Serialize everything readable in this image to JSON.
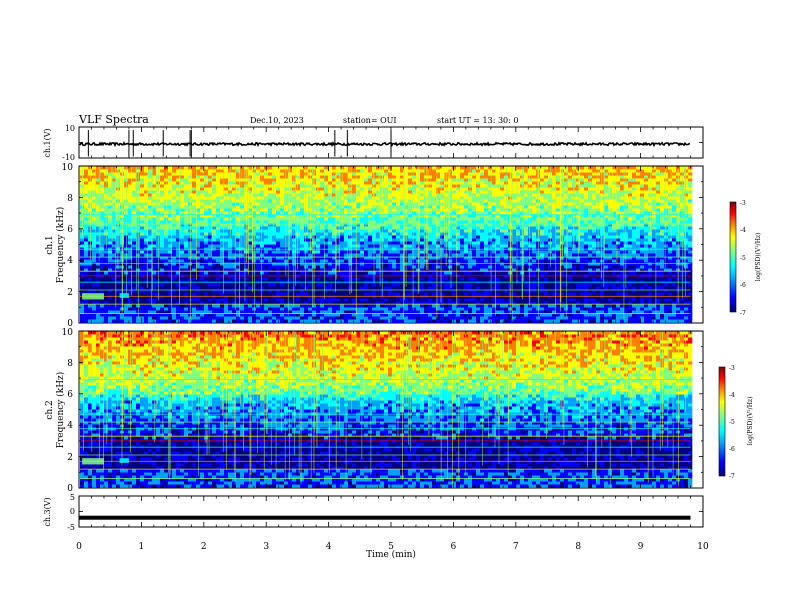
{
  "header": {
    "title": "VLF Spectra",
    "date": "Dec.10, 2023",
    "station": "station= OUI",
    "start_ut": "start  UT  =   13: 30: 0"
  },
  "chart_data": {
    "type": "heatmap",
    "x": {
      "label": "Time  (min)",
      "range": [
        0,
        10
      ],
      "ticks": [
        "0",
        "1",
        "2",
        "3",
        "4",
        "5",
        "6",
        "7",
        "8",
        "9",
        "10"
      ]
    },
    "ch1_waveform": {
      "label": "ch.1(V)",
      "ylim": [
        -10,
        10
      ],
      "ticks": [
        "10",
        "-10"
      ],
      "baseline": -1,
      "spike_times_min": [
        0.15,
        0.8,
        0.87,
        1.35,
        1.78,
        1.8,
        4.1,
        4.3,
        5.0
      ]
    },
    "spectrogram_ch1": {
      "ylabel": "ch.1\nFrequency (kHz)",
      "ylim": [
        0,
        10
      ],
      "ticks": [
        "0",
        "2",
        "4",
        "6",
        "8",
        "10"
      ],
      "data_end_min": 9.8
    },
    "spectrogram_ch2": {
      "ylabel": "ch.2\nFrequency (kHz)",
      "ylim": [
        0,
        10
      ],
      "ticks": [
        "0",
        "2",
        "4",
        "6",
        "8",
        "10"
      ],
      "data_end_min": 9.8
    },
    "ch3_waveform": {
      "label": "ch.3(V)",
      "ylim": [
        -5,
        5
      ],
      "ticks": [
        "5",
        "0",
        "-5"
      ],
      "level": -2
    },
    "colorbar": {
      "label": "log(PSD)(V²/Hz)",
      "range": [
        -7,
        -3
      ],
      "ticks": [
        "-3",
        "-4",
        "-5",
        "-6",
        "-7"
      ],
      "colors": [
        "#00007f",
        "#0000ff",
        "#00a0ff",
        "#00ffff",
        "#80ff80",
        "#ffff00",
        "#ff8000",
        "#ff0000",
        "#800000"
      ]
    }
  }
}
